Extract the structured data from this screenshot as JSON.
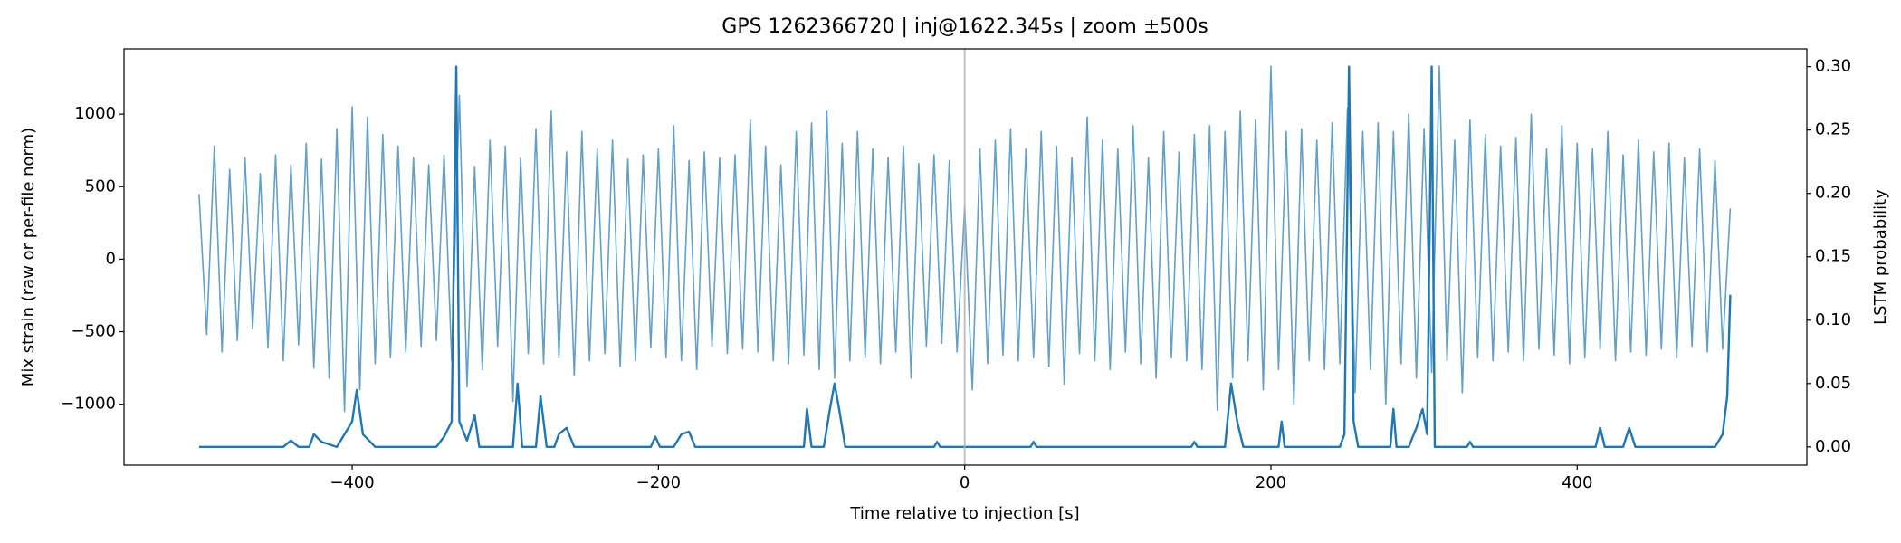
{
  "chart_data": {
    "type": "line",
    "title": "GPS 1262366720 | inj@1622.345s | zoom ±500s",
    "x_label": "Time relative to injection [s]",
    "y_label": "Mix strain (raw or per-file norm)",
    "y2_label": "LSTM probability",
    "xlim": [
      -549,
      550
    ],
    "ylim": [
      -1420,
      1450
    ],
    "y2lim": [
      -0.0144,
      0.314
    ],
    "xticks": [
      {
        "value": -400,
        "label": "−400"
      },
      {
        "value": -200,
        "label": "−200"
      },
      0,
      200,
      400
    ],
    "yticks": [
      {
        "value": -1000,
        "label": "−1000"
      },
      {
        "value": -500,
        "label": "−500"
      },
      0,
      500,
      1000
    ],
    "y2ticks": [
      {
        "value": 0,
        "label": "0.00"
      },
      {
        "value": 0.05,
        "label": "0.05"
      },
      {
        "value": 0.1,
        "label": "0.10"
      },
      {
        "value": 0.15,
        "label": "0.15"
      },
      {
        "value": 0.2,
        "label": "0.20"
      },
      {
        "value": 0.25,
        "label": "0.25"
      },
      {
        "value": 0.3,
        "label": "0.30"
      }
    ],
    "vline": 0,
    "vline_color": "#b0b0b0",
    "series": [
      {
        "color": "#62a0ca",
        "x": [
          -500,
          -495,
          -490,
          -485,
          -480,
          -475,
          -470,
          -465,
          -460,
          -455,
          -450,
          -445,
          -440,
          -435,
          -430,
          -425,
          -420,
          -415,
          -410,
          -405,
          -400,
          -395,
          -390,
          -385,
          -380,
          -375,
          -370,
          -365,
          -360,
          -355,
          -350,
          -345,
          -340,
          -335,
          -330,
          -325,
          -320,
          -315,
          -310,
          -305,
          -300,
          -295,
          -290,
          -285,
          -280,
          -275,
          -270,
          -265,
          -260,
          -255,
          -250,
          -245,
          -240,
          -235,
          -230,
          -225,
          -220,
          -215,
          -210,
          -205,
          -200,
          -195,
          -190,
          -185,
          -180,
          -175,
          -170,
          -165,
          -160,
          -155,
          -150,
          -145,
          -140,
          -135,
          -130,
          -125,
          -120,
          -115,
          -110,
          -105,
          -100,
          -95,
          -90,
          -85,
          -80,
          -75,
          -70,
          -65,
          -60,
          -55,
          -50,
          -45,
          -40,
          -35,
          -30,
          -25,
          -20,
          -15,
          -10,
          -5,
          0,
          5,
          10,
          15,
          20,
          25,
          30,
          35,
          40,
          45,
          50,
          55,
          60,
          65,
          70,
          75,
          80,
          85,
          90,
          95,
          100,
          105,
          110,
          115,
          120,
          125,
          130,
          135,
          140,
          145,
          150,
          155,
          160,
          165,
          170,
          175,
          180,
          185,
          190,
          195,
          200,
          205,
          210,
          215,
          220,
          225,
          230,
          235,
          240,
          245,
          250,
          255,
          260,
          265,
          270,
          275,
          280,
          285,
          290,
          295,
          300,
          305,
          310,
          315,
          320,
          325,
          330,
          335,
          340,
          345,
          350,
          355,
          360,
          365,
          370,
          375,
          380,
          385,
          390,
          395,
          400,
          405,
          410,
          415,
          420,
          425,
          430,
          435,
          440,
          445,
          450,
          455,
          460,
          465,
          470,
          475,
          480,
          485,
          490,
          495,
          500
        ],
        "values": [
          450,
          -520,
          780,
          -640,
          620,
          -560,
          700,
          -480,
          590,
          -610,
          720,
          -700,
          650,
          -590,
          800,
          -750,
          690,
          -820,
          900,
          -1050,
          1050,
          -900,
          980,
          -720,
          860,
          -680,
          780,
          -640,
          700,
          -600,
          650,
          -560,
          720,
          -700,
          1130,
          -880,
          640,
          -760,
          820,
          -600,
          780,
          -980,
          700,
          -650,
          900,
          -720,
          1020,
          -680,
          740,
          -800,
          880,
          -700,
          760,
          -650,
          820,
          -740,
          690,
          -700,
          720,
          -610,
          760,
          -680,
          920,
          -700,
          680,
          -760,
          740,
          -600,
          700,
          -650,
          720,
          -620,
          960,
          -640,
          780,
          -700,
          650,
          -720,
          880,
          -660,
          940,
          -760,
          1020,
          -820,
          800,
          -700,
          880,
          -680,
          760,
          -720,
          700,
          -640,
          780,
          -820,
          660,
          -600,
          720,
          -580,
          680,
          -640,
          360,
          -900,
          760,
          -720,
          820,
          -660,
          900,
          -700,
          760,
          -680,
          880,
          -740,
          780,
          -860,
          700,
          -650,
          980,
          -700,
          820,
          -760,
          760,
          -640,
          920,
          -720,
          700,
          -820,
          880,
          -680,
          740,
          -700,
          860,
          -760,
          920,
          -1040,
          880,
          -820,
          1020,
          -700,
          960,
          -900,
          1330,
          -760,
          880,
          -1000,
          900,
          -700,
          820,
          -760,
          940,
          -720,
          1040,
          -920,
          880,
          -760,
          940,
          -1000,
          880,
          -720,
          1000,
          -820,
          900,
          -780,
          1330,
          -700,
          820,
          -920,
          960,
          -680,
          860,
          -700,
          780,
          -640,
          840,
          -700,
          1000,
          -620,
          760,
          -660,
          920,
          -720,
          800,
          -680,
          760,
          -620,
          880,
          -700,
          720,
          -640,
          820,
          -660,
          740,
          -620,
          800,
          -680,
          700,
          -600,
          760,
          -640,
          680,
          -620,
          350
        ]
      },
      {
        "color": "#1f77b4",
        "axis": "y2",
        "x": [
          -500,
          -445,
          -440,
          -435,
          -428,
          -425,
          -420,
          -410,
          -405,
          -400,
          -397,
          -393,
          -385,
          -345,
          -340,
          -335,
          -332,
          -330,
          -325,
          -320,
          -317,
          -295,
          -292,
          -289,
          -280,
          -277,
          -273,
          -268,
          -265,
          -260,
          -255,
          -205,
          -202,
          -199,
          -190,
          -185,
          -180,
          -176,
          -105,
          -103,
          -100,
          -92,
          -88,
          -85,
          -82,
          -78,
          -20,
          -18,
          -16,
          43,
          45,
          47,
          148,
          150,
          152,
          170,
          174,
          178,
          182,
          205,
          207,
          209,
          245,
          248,
          251,
          254,
          257,
          278,
          280,
          282,
          290,
          295,
          299,
          302,
          305,
          307,
          328,
          330,
          332,
          412,
          415,
          418,
          430,
          434,
          438,
          490,
          495,
          498,
          500
        ],
        "values": [
          0,
          0,
          0.005,
          0,
          0,
          0.01,
          0.004,
          0,
          0.01,
          0.02,
          0.045,
          0.01,
          0,
          0,
          0.008,
          0.02,
          0.3,
          0.02,
          0.005,
          0.025,
          0,
          0,
          0.05,
          0,
          0,
          0.04,
          0,
          0,
          0.01,
          0.015,
          0,
          0,
          0.008,
          0,
          0,
          0.01,
          0.012,
          0,
          0,
          0.03,
          0,
          0,
          0.03,
          0.05,
          0.03,
          0,
          0,
          0.004,
          0,
          0,
          0.004,
          0,
          0,
          0.004,
          0,
          0,
          0.05,
          0.02,
          0,
          0,
          0.02,
          0,
          0,
          0.01,
          0.3,
          0.02,
          0,
          0,
          0.03,
          0,
          0,
          0.015,
          0.03,
          0.01,
          0.3,
          0,
          0,
          0.004,
          0,
          0,
          0.015,
          0,
          0,
          0.015,
          0,
          0,
          0.01,
          0.04,
          0.12
        ]
      }
    ]
  }
}
